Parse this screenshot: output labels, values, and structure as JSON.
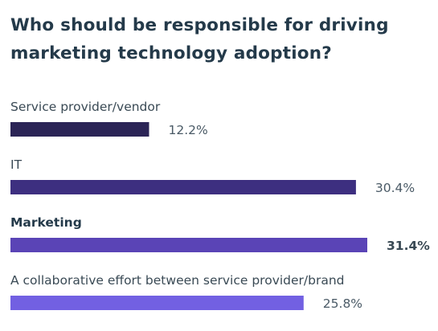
{
  "chart_data": {
    "type": "bar",
    "orientation": "horizontal",
    "title": "Who should be responsible for driving marketing technology adoption?",
    "categories": [
      "Service provider/vendor",
      "IT",
      "Marketing",
      "A collaborative effort between service provider/brand"
    ],
    "values": [
      12.2,
      30.4,
      31.4,
      25.8
    ],
    "value_labels": [
      "12.2%",
      "30.4%",
      "31.4%",
      "25.8%"
    ],
    "value_unit": "%",
    "highlighted": "Marketing",
    "bar_colors": [
      "#2b2456",
      "#3d2f80",
      "#5a44b6",
      "#7260e2"
    ],
    "xlim": [
      0,
      31.4
    ],
    "grid": false,
    "legend": "none"
  }
}
